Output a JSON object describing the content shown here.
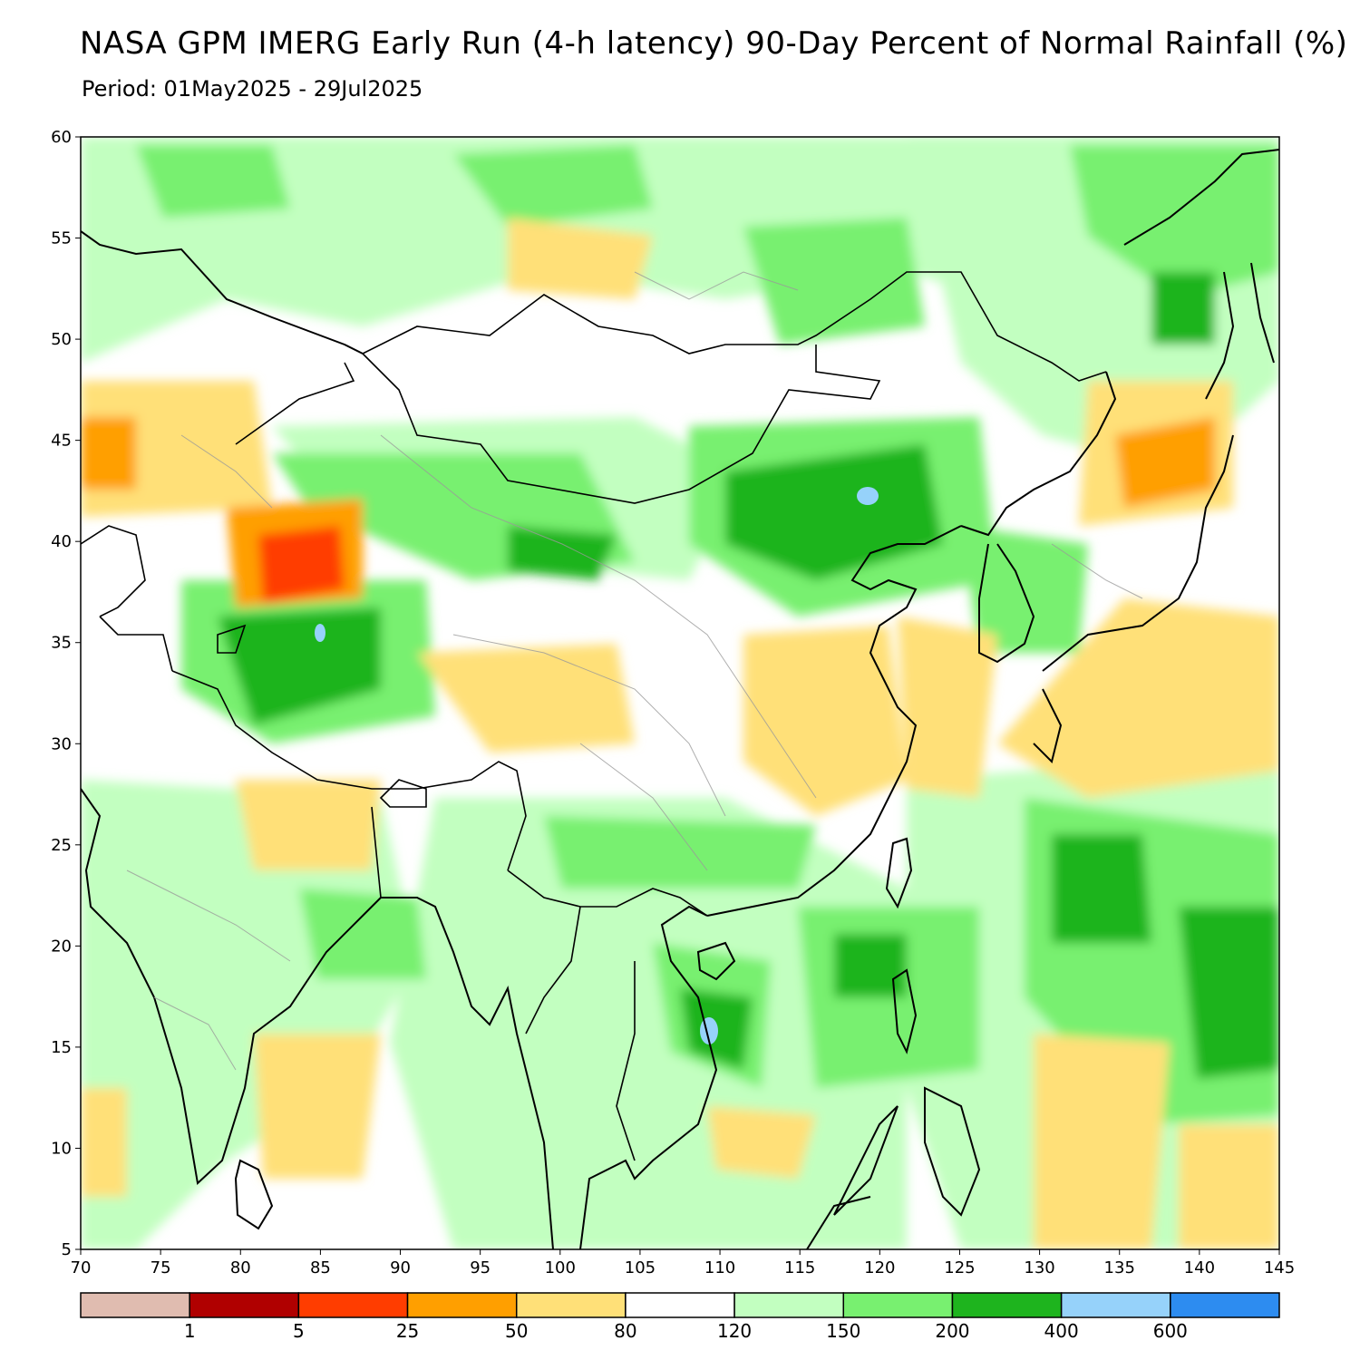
{
  "title": "NASA GPM IMERG Early Run (4-h latency) 90-Day Percent of Normal Rainfall (%)",
  "period": "Period: 01May2025 - 29Jul2025",
  "map": {
    "lon_range": [
      70,
      145
    ],
    "lat_range": [
      5,
      60
    ],
    "lon_ticks": [
      "70",
      "75",
      "80",
      "85",
      "90",
      "95",
      "100",
      "105",
      "110",
      "115",
      "120",
      "125",
      "130",
      "135",
      "140",
      "145"
    ],
    "lat_ticks": [
      "5",
      "10",
      "15",
      "20",
      "25",
      "30",
      "35",
      "40",
      "45",
      "50",
      "55",
      "60"
    ],
    "background_color": "#ffffff"
  },
  "colorbar": {
    "colors": [
      "#e0bcb0",
      "#b00000",
      "#ff3d00",
      "#ff9f00",
      "#ffe078",
      "#ffffff",
      "#c2ffc0",
      "#78f070",
      "#1eb41e",
      "#96d2fa",
      "#2d8cf0"
    ],
    "labels": [
      "1",
      "5",
      "25",
      "50",
      "80",
      "120",
      "150",
      "200",
      "400",
      "600"
    ]
  },
  "regions": [
    {
      "name": "tarim-dry",
      "color": "#ff3d00"
    },
    {
      "name": "tarim-moderate",
      "color": "#ff9f00"
    },
    {
      "name": "north-china-wet",
      "color": "#1eb41e"
    },
    {
      "name": "east-china-dry",
      "color": "#ffe078"
    },
    {
      "name": "pacific-wet",
      "color": "#1eb41e"
    },
    {
      "name": "japan-dry",
      "color": "#ff9f00"
    },
    {
      "name": "tibet-wet",
      "color": "#1eb41e"
    },
    {
      "name": "vietnam-very-wet",
      "color": "#96d2fa"
    }
  ]
}
